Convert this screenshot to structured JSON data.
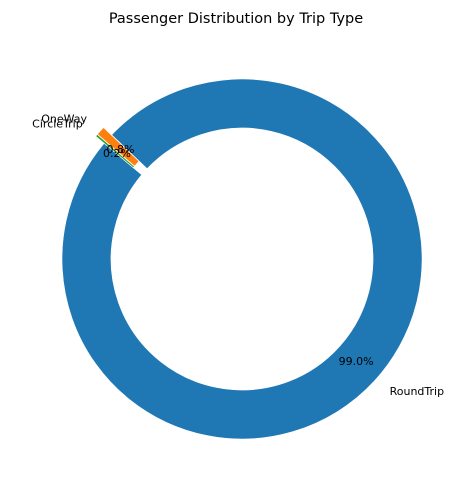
{
  "chart_data": {
    "type": "pie",
    "donut": true,
    "title": "Passenger Distribution by Trip Type",
    "categories": [
      "RoundTrip",
      "OneWay",
      "CircleTrip"
    ],
    "values": [
      99.0,
      0.8,
      0.2
    ],
    "pct_labels": [
      "99.0%",
      "0.8%",
      "0.2%"
    ],
    "colors": [
      "#1f77b4",
      "#ff7f0e",
      "#2ca02c"
    ],
    "start_angle_deg": 140,
    "explode": [
      0,
      1,
      1
    ],
    "legend": "none"
  }
}
